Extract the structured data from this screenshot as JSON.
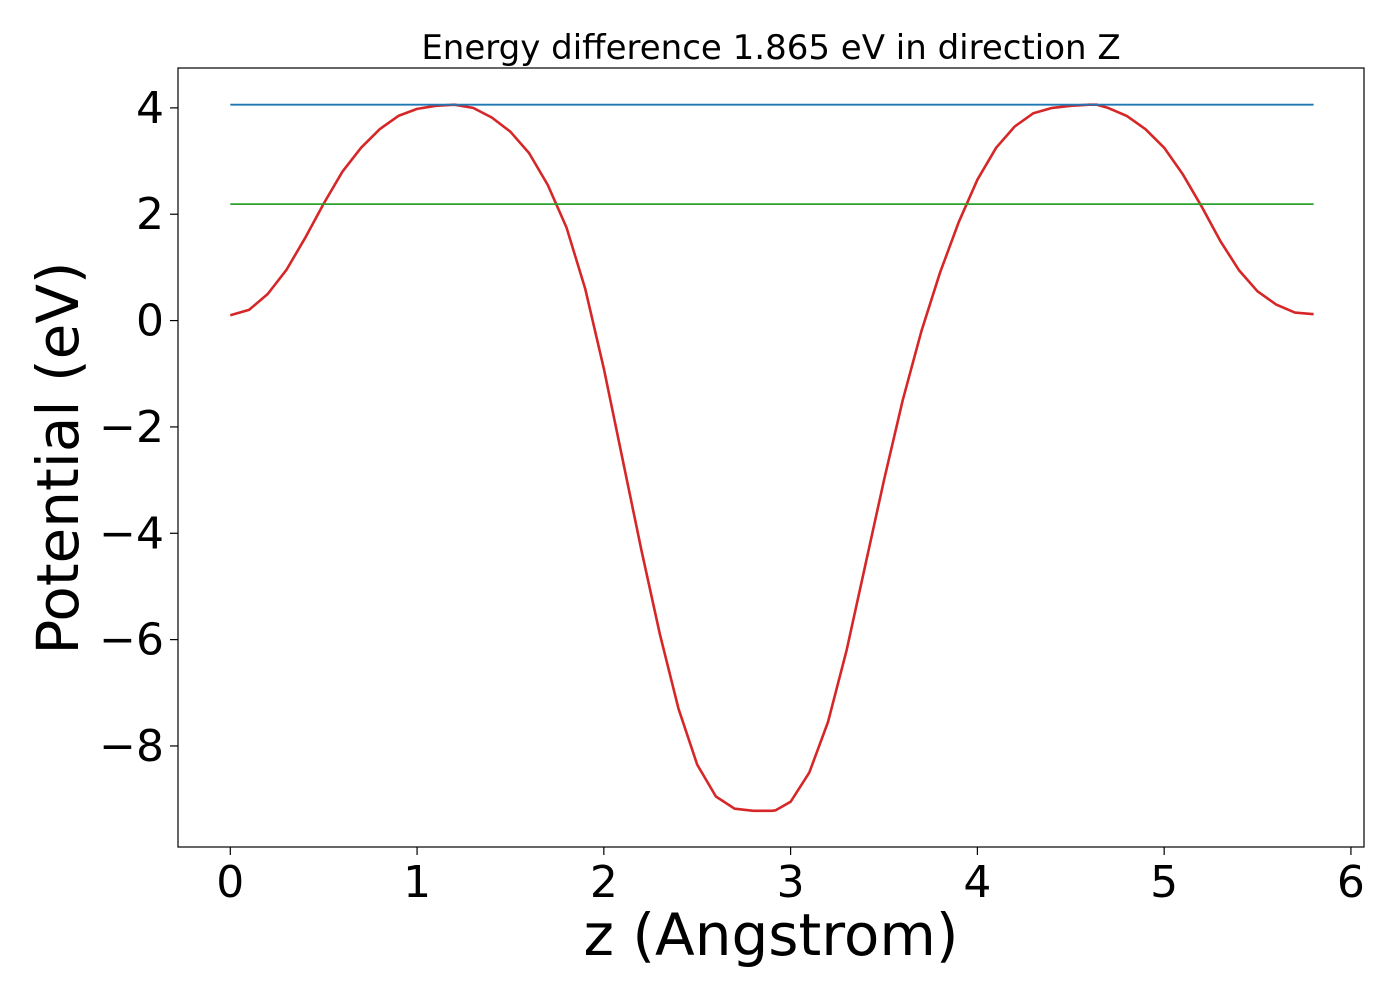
{
  "chart_data": {
    "type": "line",
    "title": "Energy difference 1.865 eV in direction Z",
    "xlabel": "z (Angstrom)",
    "ylabel": "Potential (eV)",
    "xlim": [
      -0.28,
      6.07
    ],
    "ylim": [
      -9.9,
      4.75
    ],
    "xticks": [
      0,
      1,
      2,
      3,
      4,
      5,
      6
    ],
    "xtick_labels": [
      "0",
      "1",
      "2",
      "3",
      "4",
      "5",
      "6"
    ],
    "yticks": [
      4,
      2,
      0,
      -2,
      -4,
      -6,
      -8
    ],
    "ytick_labels": [
      "4",
      "2",
      "0",
      "−2",
      "−4",
      "−6",
      "−8"
    ],
    "grid": false,
    "legend": "none",
    "series": [
      {
        "color": "#d62728",
        "x": [
          0.0,
          0.1,
          0.2,
          0.3,
          0.4,
          0.5,
          0.6,
          0.7,
          0.8,
          0.9,
          1.0,
          1.1,
          1.2,
          1.3,
          1.4,
          1.5,
          1.6,
          1.7,
          1.8,
          1.9,
          2.0,
          2.1,
          2.2,
          2.3,
          2.4,
          2.5,
          2.6,
          2.7,
          2.8,
          2.9,
          2.92,
          3.0,
          3.1,
          3.2,
          3.3,
          3.4,
          3.5,
          3.6,
          3.7,
          3.8,
          3.9,
          4.0,
          4.1,
          4.2,
          4.3,
          4.4,
          4.5,
          4.6,
          4.64,
          4.7,
          4.8,
          4.9,
          5.0,
          5.1,
          5.2,
          5.3,
          5.4,
          5.5,
          5.6,
          5.7,
          5.8
        ],
        "y": [
          0.1,
          0.2,
          0.5,
          0.95,
          1.55,
          2.2,
          2.8,
          3.25,
          3.6,
          3.85,
          3.98,
          4.04,
          4.06,
          4.0,
          3.82,
          3.55,
          3.15,
          2.55,
          1.75,
          0.6,
          -0.9,
          -2.6,
          -4.3,
          -5.9,
          -7.3,
          -8.35,
          -8.95,
          -9.18,
          -9.22,
          -9.22,
          -9.21,
          -9.05,
          -8.5,
          -7.55,
          -6.2,
          -4.6,
          -3.0,
          -1.5,
          -0.2,
          0.9,
          1.85,
          2.65,
          3.25,
          3.65,
          3.9,
          4.0,
          4.04,
          4.06,
          4.06,
          4.0,
          3.85,
          3.6,
          3.25,
          2.75,
          2.15,
          1.5,
          0.95,
          0.55,
          0.3,
          0.15,
          0.12
        ]
      },
      {
        "color": "#1f77b4",
        "x": [
          0.0,
          5.8
        ],
        "y": [
          4.06,
          4.06
        ]
      },
      {
        "color": "#2ca02c",
        "x": [
          0.0,
          5.8
        ],
        "y": [
          2.19,
          2.19
        ]
      }
    ]
  }
}
